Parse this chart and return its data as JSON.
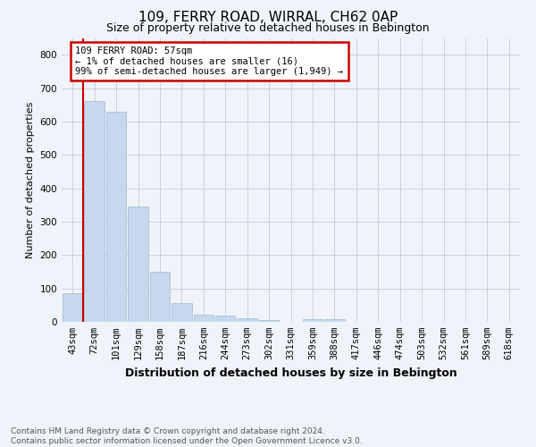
{
  "title": "109, FERRY ROAD, WIRRAL, CH62 0AP",
  "subtitle": "Size of property relative to detached houses in Bebington",
  "xlabel": "Distribution of detached houses by size in Bebington",
  "ylabel": "Number of detached properties",
  "categories": [
    "43sqm",
    "72sqm",
    "101sqm",
    "129sqm",
    "158sqm",
    "187sqm",
    "216sqm",
    "244sqm",
    "273sqm",
    "302sqm",
    "331sqm",
    "359sqm",
    "388sqm",
    "417sqm",
    "446sqm",
    "474sqm",
    "503sqm",
    "532sqm",
    "561sqm",
    "589sqm",
    "618sqm"
  ],
  "values": [
    85,
    660,
    630,
    345,
    150,
    55,
    22,
    18,
    12,
    5,
    0,
    8,
    8,
    0,
    0,
    0,
    0,
    0,
    0,
    0,
    0
  ],
  "bar_color": "#c5d8ed",
  "bar_edge_color": "#a0b8d0",
  "red_line_x": 0.5,
  "annotation_text": "109 FERRY ROAD: 57sqm\n← 1% of detached houses are smaller (16)\n99% of semi-detached houses are larger (1,949) →",
  "annotation_box_color": "#ffffff",
  "annotation_box_edge": "#cc0000",
  "footer_line1": "Contains HM Land Registry data © Crown copyright and database right 2024.",
  "footer_line2": "Contains public sector information licensed under the Open Government Licence v3.0.",
  "ylim": [
    0,
    850
  ],
  "yticks": [
    0,
    100,
    200,
    300,
    400,
    500,
    600,
    700,
    800
  ],
  "bg_color": "#f0f4fa",
  "grid_color": "#c8d0dc",
  "title_fontsize": 11,
  "subtitle_fontsize": 9,
  "xlabel_fontsize": 9,
  "ylabel_fontsize": 8,
  "tick_fontsize": 7.5,
  "footer_fontsize": 6.5
}
